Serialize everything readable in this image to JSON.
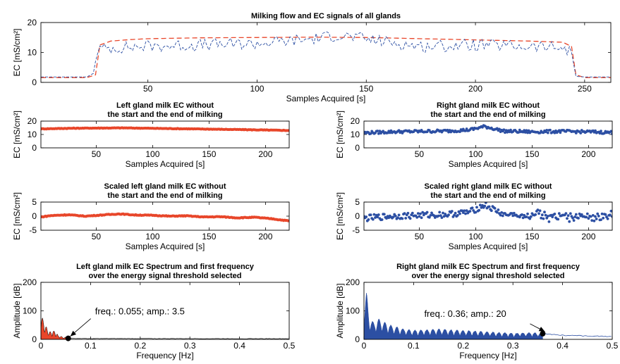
{
  "chart_data": [
    {
      "id": "all",
      "type": "line",
      "title": "Milking flow and EC signals of all glands",
      "xlabel": "Samples Acquired [s]",
      "ylabel": "EC [mS/cm²]",
      "xlim": [
        1,
        262
      ],
      "ylim": [
        0,
        20
      ],
      "xticks": [
        50,
        100,
        150,
        200,
        250
      ],
      "yticks": [
        0,
        10,
        20
      ],
      "grid": false,
      "series": [
        {
          "color": "#e8462a",
          "style": "dashed",
          "x": [
            1,
            18,
            22,
            26,
            28,
            33,
            42,
            50,
            75,
            100,
            125,
            150,
            175,
            200,
            225,
            240,
            244,
            246,
            250,
            262
          ],
          "y": [
            1.6,
            1.6,
            1.6,
            2.5,
            12.5,
            13.8,
            14.3,
            14.6,
            14.9,
            15.0,
            15.1,
            15.0,
            14.6,
            14.2,
            13.8,
            13.4,
            12.0,
            2.5,
            1.6,
            1.6
          ]
        },
        {
          "color": "#2c4fa3",
          "style": "dashed",
          "x": [
            1,
            18,
            22,
            25,
            27,
            33,
            42,
            50,
            75,
            100,
            125,
            137,
            150,
            175,
            200,
            225,
            240,
            244,
            246,
            250,
            262
          ],
          "y": [
            1.8,
            1.8,
            1.8,
            3.0,
            11.0,
            11.5,
            11.8,
            12.1,
            12.5,
            13.0,
            14.5,
            15.8,
            14.5,
            12.0,
            12.5,
            12.0,
            11.5,
            10.0,
            2.0,
            1.8,
            1.8
          ]
        }
      ]
    },
    {
      "id": "left",
      "type": "line",
      "title": "Left gland milk EC without\nthe start and the end of milking",
      "xlabel": "Samples Acquired [s]",
      "ylabel": "EC [mS/cm²]",
      "xlim": [
        1,
        221
      ],
      "ylim": [
        0,
        20
      ],
      "xticks": [
        50,
        100,
        150,
        200
      ],
      "yticks": [
        0,
        10,
        20
      ],
      "grid": false,
      "series": [
        {
          "color": "#e8462a",
          "style": "dots",
          "x": [
            1,
            25,
            50,
            75,
            100,
            125,
            150,
            175,
            200,
            221
          ],
          "y": [
            14.2,
            14.6,
            14.8,
            14.9,
            14.6,
            14.3,
            14.0,
            13.7,
            13.3,
            13.0
          ]
        }
      ]
    },
    {
      "id": "right",
      "type": "scatter",
      "title": "Right gland milk EC without\nthe start and the end of milking",
      "xlabel": "Samples Acquired [s]",
      "ylabel": "EC [mS/cm²]",
      "xlim": [
        1,
        221
      ],
      "ylim": [
        0,
        20
      ],
      "xticks": [
        50,
        100,
        150,
        200
      ],
      "yticks": [
        0,
        10,
        20
      ],
      "grid": false,
      "series": [
        {
          "color": "#2c4fa3",
          "style": "dots",
          "x": [
            1,
            25,
            50,
            75,
            95,
            108,
            125,
            150,
            175,
            200,
            221
          ],
          "y": [
            11.2,
            12.0,
            12.3,
            12.6,
            13.5,
            16.0,
            12.5,
            12.0,
            12.3,
            12.0,
            11.5
          ]
        }
      ]
    },
    {
      "id": "sleft",
      "type": "line",
      "title": "Scaled left gland milk EC without\nthe start and the end of milking",
      "xlabel": "Samples Acquired [s]",
      "ylabel": "EC [mS/cm²]",
      "xlim": [
        1,
        221
      ],
      "ylim": [
        -5,
        5
      ],
      "xticks": [
        50,
        100,
        150,
        200
      ],
      "yticks": [
        -5,
        0,
        5
      ],
      "grid": false,
      "series": [
        {
          "color": "#e8462a",
          "style": "dots",
          "x": [
            1,
            10,
            25,
            40,
            55,
            70,
            85,
            100,
            115,
            130,
            145,
            160,
            175,
            190,
            205,
            221
          ],
          "y": [
            -0.3,
            0.2,
            0.5,
            0.0,
            0.4,
            0.8,
            0.4,
            0.3,
            0.0,
            0.1,
            -0.3,
            -0.2,
            -0.6,
            -0.4,
            -0.9,
            -1.7
          ]
        }
      ]
    },
    {
      "id": "sright",
      "type": "scatter",
      "title": "Scaled right gland milk EC without\nthe start and the end of milking",
      "xlabel": "Samples Acquired [s]",
      "ylabel": "EC [mS/cm²]",
      "xlim": [
        1,
        221
      ],
      "ylim": [
        -5,
        5
      ],
      "xticks": [
        50,
        100,
        150,
        200
      ],
      "yticks": [
        -5,
        0,
        5
      ],
      "grid": false,
      "series": [
        {
          "color": "#2c4fa3",
          "style": "dots",
          "x": [
            1,
            25,
            50,
            75,
            95,
            108,
            125,
            150,
            175,
            200,
            221
          ],
          "y": [
            -0.8,
            0.0,
            0.3,
            0.6,
            1.5,
            4.0,
            0.5,
            0.0,
            0.3,
            0.0,
            -0.5
          ]
        }
      ]
    },
    {
      "id": "fl",
      "type": "area",
      "title": "Left gland milk EC Spectrum and first frequency\nover the energy signal threshold selected",
      "xlabel": "Frequency [Hz]",
      "ylabel": "Amplitude [dB]",
      "xlim": [
        0,
        0.5
      ],
      "ylim": [
        0,
        200
      ],
      "xticks": [
        0,
        0.1,
        0.2,
        0.3,
        0.4,
        0.5
      ],
      "yticks": [
        0,
        100,
        200
      ],
      "grid": false,
      "fill_color": "#e8462a",
      "threshold_freq": 0.055,
      "spectrum": {
        "x": [
          0,
          0.005,
          0.01,
          0.015,
          0.02,
          0.025,
          0.03,
          0.035,
          0.04,
          0.045,
          0.05,
          0.055
        ],
        "y": [
          95,
          62,
          45,
          28,
          25,
          30,
          22,
          12,
          9,
          6,
          5,
          3.5
        ]
      },
      "tail": {
        "x": [
          0.055,
          0.1,
          0.2,
          0.3,
          0.4,
          0.5
        ],
        "y": [
          3.5,
          3,
          3,
          2.8,
          2.5,
          2.5
        ]
      },
      "annotation": {
        "text": "freq.: 0.055; amp.: 3.5",
        "x": 0.055,
        "y": 3.5
      }
    },
    {
      "id": "fr",
      "type": "area",
      "title": "Right gland milk EC Spectrum and first frequency\nover the energy signal threshold selected",
      "xlabel": "Frequency [Hz]",
      "ylabel": "Amplitude [dB]",
      "xlim": [
        0,
        0.5
      ],
      "ylim": [
        0,
        200
      ],
      "xticks": [
        0,
        0.1,
        0.2,
        0.3,
        0.4,
        0.5
      ],
      "yticks": [
        0,
        100,
        200
      ],
      "grid": false,
      "fill_color": "#2c4fa3",
      "threshold_freq": 0.36,
      "spectrum": {
        "x": [
          0,
          0.005,
          0.01,
          0.02,
          0.03,
          0.05,
          0.08,
          0.1,
          0.15,
          0.2,
          0.25,
          0.3,
          0.33,
          0.36
        ],
        "y": [
          110,
          170,
          80,
          55,
          70,
          50,
          35,
          30,
          35,
          30,
          25,
          20,
          22,
          20
        ]
      },
      "tail": {
        "x": [
          0.36,
          0.4,
          0.45,
          0.5
        ],
        "y": [
          20,
          14,
          12,
          10
        ]
      },
      "annotation": {
        "text": "freq.: 0.36; amp.: 20",
        "x": 0.36,
        "y": 20
      }
    }
  ]
}
